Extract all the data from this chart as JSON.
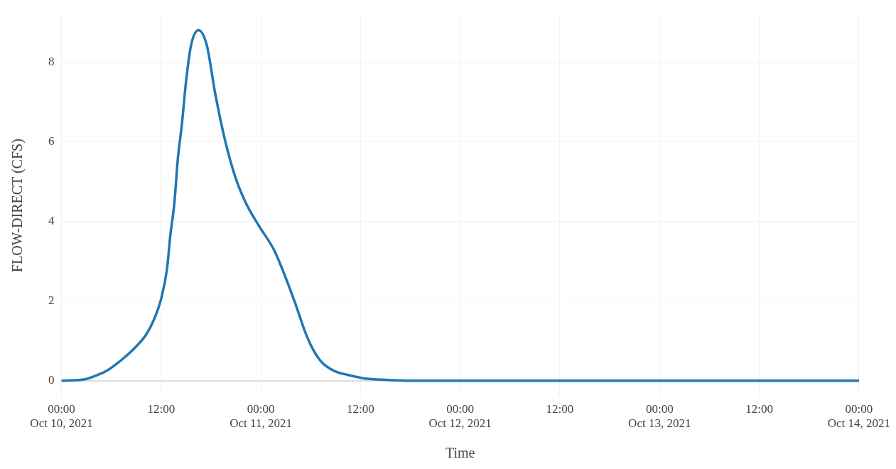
{
  "chart_data": {
    "type": "line",
    "xlabel": "Time",
    "ylabel": "FLOW-DIRECT (CFS)",
    "x": [
      "2021-10-10T00:00",
      "2021-10-10T02:42",
      "2021-10-10T04:24",
      "2021-10-10T05:36",
      "2021-10-10T07:06",
      "2021-10-10T08:54",
      "2021-10-10T10:12",
      "2021-10-10T11:06",
      "2021-10-10T12:00",
      "2021-10-10T12:42",
      "2021-10-10T13:06",
      "2021-10-10T13:36",
      "2021-10-10T14:00",
      "2021-10-10T14:30",
      "2021-10-10T15:00",
      "2021-10-10T15:36",
      "2021-10-10T16:30",
      "2021-10-10T17:30",
      "2021-10-10T18:30",
      "2021-10-10T19:42",
      "2021-10-10T21:00",
      "2021-10-10T22:18",
      "2021-10-10T23:48",
      "2021-10-11T01:36",
      "2021-10-11T02:48",
      "2021-10-11T04:06",
      "2021-10-11T05:24",
      "2021-10-11T06:18",
      "2021-10-11T07:24",
      "2021-10-11T08:54",
      "2021-10-11T10:24",
      "2021-10-11T12:24",
      "2021-10-11T15:24",
      "2021-10-11T17:42",
      "2021-10-12T00:00",
      "2021-10-12T12:00",
      "2021-10-13T00:00",
      "2021-10-13T12:00",
      "2021-10-14T00:00"
    ],
    "series": [
      {
        "color": "#1f77b4",
        "values": [
          0,
          0.03,
          0.15,
          0.27,
          0.5,
          0.84,
          1.16,
          1.52,
          2.06,
          2.8,
          3.64,
          4.48,
          5.55,
          6.45,
          7.52,
          8.42,
          8.8,
          8.42,
          7.22,
          6.03,
          5.07,
          4.42,
          3.88,
          3.28,
          2.69,
          1.97,
          1.19,
          0.78,
          0.45,
          0.24,
          0.15,
          0.06,
          0.02,
          0,
          0,
          0,
          0,
          0,
          0
        ]
      }
    ],
    "xlim": [
      "2021-10-10T00:00",
      "2021-10-14T00:00"
    ],
    "xticks": [
      {
        "value": "2021-10-10T00:00",
        "label": "00:00\nOct 10, 2021"
      },
      {
        "value": "2021-10-10T12:00",
        "label": "12:00"
      },
      {
        "value": "2021-10-11T00:00",
        "label": "00:00\nOct 11, 2021"
      },
      {
        "value": "2021-10-11T12:00",
        "label": "12:00"
      },
      {
        "value": "2021-10-12T00:00",
        "label": "00:00\nOct 12, 2021"
      },
      {
        "value": "2021-10-12T12:00",
        "label": "12:00"
      },
      {
        "value": "2021-10-13T00:00",
        "label": "00:00\nOct 13, 2021"
      },
      {
        "value": "2021-10-13T12:00",
        "label": "12:00"
      },
      {
        "value": "2021-10-14T00:00",
        "label": "00:00\nOct 14, 2021"
      }
    ],
    "ylim": [
      -0.4,
      9.2
    ],
    "yticks": [
      0,
      2,
      4,
      6,
      8
    ],
    "grid": true,
    "legend": false,
    "marker": "none",
    "line_style": "solid"
  }
}
